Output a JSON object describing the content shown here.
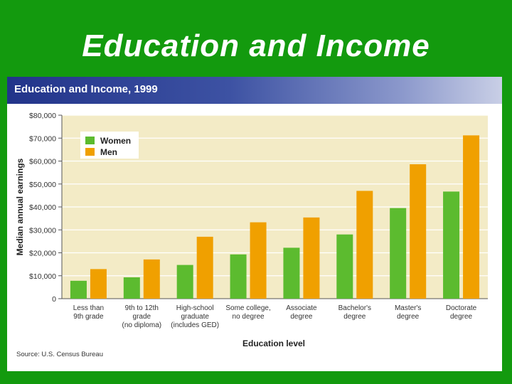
{
  "slide": {
    "title": "Education and Income"
  },
  "chart_data": {
    "type": "bar",
    "title": "Education and Income, 1999",
    "xlabel": "Education level",
    "ylabel": "Median annual earnings",
    "source": "Source: U.S. Census Bureau",
    "ylim": [
      0,
      80000
    ],
    "yticks": [
      {
        "value": 0,
        "label": "0"
      },
      {
        "value": 10000,
        "label": "$10,000"
      },
      {
        "value": 20000,
        "label": "$20,000"
      },
      {
        "value": 30000,
        "label": "$30,000"
      },
      {
        "value": 40000,
        "label": "$40,000"
      },
      {
        "value": 50000,
        "label": "$50,000"
      },
      {
        "value": 60000,
        "label": "$60,000"
      },
      {
        "value": 70000,
        "label": "$70,000"
      },
      {
        "value": 80000,
        "label": "$80,000"
      }
    ],
    "categories": [
      [
        "Less than",
        "9th grade"
      ],
      [
        "9th to 12th",
        "grade",
        "(no diploma)"
      ],
      [
        "High-school",
        "graduate",
        "(includes GED)"
      ],
      [
        "Some college,",
        "no degree"
      ],
      [
        "Associate",
        "degree"
      ],
      [
        "Bachelor's",
        "degree"
      ],
      [
        "Master's",
        "degree"
      ],
      [
        "Doctorate",
        "degree"
      ]
    ],
    "series": [
      {
        "name": "Women",
        "color": "#5cbb2f",
        "values": [
          7800,
          9300,
          14700,
          19300,
          22200,
          28000,
          39500,
          46700
        ]
      },
      {
        "name": "Men",
        "color": "#f0a000",
        "values": [
          12900,
          17100,
          27000,
          33300,
          35400,
          47000,
          58600,
          71200
        ]
      }
    ],
    "grid": true,
    "legend": "top-left"
  }
}
